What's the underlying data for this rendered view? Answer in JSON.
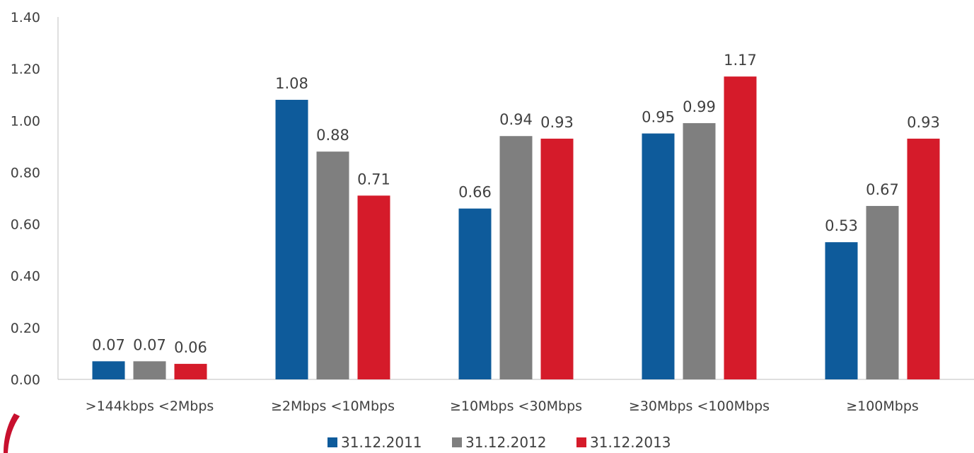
{
  "chart_data": {
    "type": "bar",
    "categories": [
      ">144kbps <2Mbps",
      "≥2Mbps <10Mbps",
      "≥10Mbps <30Mbps",
      "≥30Mbps <100Mbps",
      "≥100Mbps"
    ],
    "series": [
      {
        "name": "31.12.2011",
        "color": "#0e5b9b",
        "values": [
          0.07,
          1.08,
          0.66,
          0.95,
          0.53
        ]
      },
      {
        "name": "31.12.2012",
        "color": "#7f7f7f",
        "values": [
          0.07,
          0.88,
          0.94,
          0.99,
          0.67
        ]
      },
      {
        "name": "31.12.2013",
        "color": "#d51b2a",
        "values": [
          0.06,
          0.71,
          0.93,
          1.17,
          0.93
        ]
      }
    ],
    "ylim": [
      0,
      1.4
    ],
    "yticks": [
      "0.00",
      "0.20",
      "0.40",
      "0.60",
      "0.80",
      "1.00",
      "1.20",
      "1.40"
    ],
    "title": "",
    "xlabel": "",
    "ylabel": "",
    "grid": false,
    "legend_position": "bottom-center",
    "data_labels": true
  }
}
